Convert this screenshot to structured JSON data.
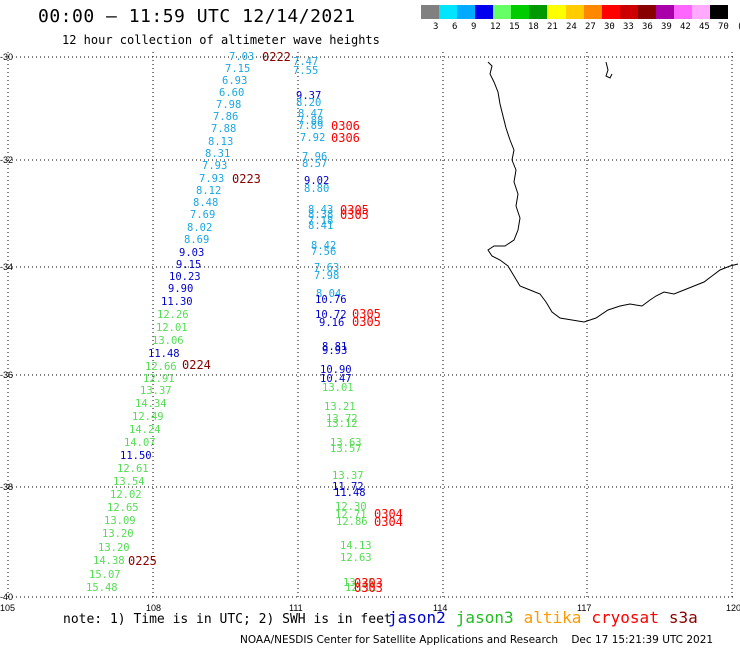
{
  "header": {
    "title": "00:00 – 11:59 UTC 12/14/2021",
    "subtitle": "12 hour collection of altimeter wave heights"
  },
  "colorbar": {
    "colors": [
      "#808080",
      "#00e5ff",
      "#00aaff",
      "#0000ee",
      "#66ff66",
      "#00cc00",
      "#009900",
      "#ffff00",
      "#ffcc00",
      "#ff8800",
      "#ff0000",
      "#cc0000",
      "#880000",
      "#aa00aa",
      "#ff66ff",
      "#ffaaff",
      "#000000"
    ],
    "labels": [
      "3",
      "6",
      "9",
      "12",
      "15",
      "18",
      "21",
      "24",
      "27",
      "30",
      "33",
      "36",
      "39",
      "42",
      "45",
      "70",
      "(ft)"
    ]
  },
  "axes": {
    "lat_labels": [
      "-30",
      "-32",
      "-34",
      "-36",
      "-38",
      "-40"
    ],
    "lon_labels": [
      "105",
      "108",
      "111",
      "114",
      "117",
      "120"
    ]
  },
  "tracks": [
    {
      "sat": "cryosat",
      "color": "#1aa7e0",
      "points": [
        [
          "7.03",
          118,
          0
        ],
        [
          "7.15",
          122,
          1
        ],
        [
          "6.93",
          120,
          2
        ],
        [
          "6.60",
          119,
          3
        ],
        [
          "7.98",
          118,
          4
        ],
        [
          "7.86",
          116,
          5
        ],
        [
          "7.88",
          115,
          6
        ],
        [
          "8.13",
          113,
          7
        ],
        [
          "8.31",
          111,
          8
        ],
        [
          "7.93",
          109,
          9
        ],
        [
          "7.93",
          107,
          10
        ],
        [
          "8.12",
          105,
          11
        ],
        [
          "8.48",
          103,
          12
        ],
        [
          "7.69",
          102,
          13
        ],
        [
          "8.02",
          100,
          14
        ],
        [
          "8.69",
          98,
          15
        ]
      ]
    },
    {
      "sat": "jason2",
      "color": "#0000cc",
      "points": [
        [
          "9.03",
          96,
          16
        ],
        [
          "9.15",
          95,
          17
        ],
        [
          "10.23",
          92,
          18
        ],
        [
          "9.90",
          91,
          19
        ],
        [
          "11.30",
          89,
          20
        ]
      ]
    },
    {
      "sat": "jason3",
      "color": "#55dd55",
      "points": [
        [
          "12.26",
          87,
          21
        ],
        [
          "12.01",
          85,
          22
        ],
        [
          "13.06",
          83,
          23
        ]
      ]
    }
  ],
  "labels_left": [
    {
      "t": "7.03",
      "c": "#1aa7e0"
    },
    {
      "t": "7.15",
      "c": "#1aa7e0"
    },
    {
      "t": "6.93",
      "c": "#1aa7e0"
    },
    {
      "t": "6.60",
      "c": "#1aa7e0"
    },
    {
      "t": "7.98",
      "c": "#1aa7e0"
    },
    {
      "t": "7.86",
      "c": "#1aa7e0"
    },
    {
      "t": "7.88",
      "c": "#1aa7e0"
    },
    {
      "t": "8.13",
      "c": "#1aa7e0"
    },
    {
      "t": "8.31",
      "c": "#1aa7e0"
    },
    {
      "t": "7.93",
      "c": "#1aa7e0"
    },
    {
      "t": "7.93",
      "c": "#1aa7e0"
    },
    {
      "t": "8.12",
      "c": "#1aa7e0"
    },
    {
      "t": "8.48",
      "c": "#1aa7e0"
    },
    {
      "t": "7.69",
      "c": "#1aa7e0"
    },
    {
      "t": "8.02",
      "c": "#1aa7e0"
    },
    {
      "t": "8.69",
      "c": "#1aa7e0"
    },
    {
      "t": "9.03",
      "c": "#0000cc"
    },
    {
      "t": "9.15",
      "c": "#0000cc"
    },
    {
      "t": "10.23",
      "c": "#0000cc"
    },
    {
      "t": "9.90",
      "c": "#0000cc"
    },
    {
      "t": "11.30",
      "c": "#0000cc"
    },
    {
      "t": "12.26",
      "c": "#55dd55"
    },
    {
      "t": "12.01",
      "c": "#55dd55"
    },
    {
      "t": "13.06",
      "c": "#55dd55"
    },
    {
      "t": "11.48",
      "c": "#0000cc"
    },
    {
      "t": "12.66",
      "c": "#55dd55"
    },
    {
      "t": "12.91",
      "c": "#55dd55"
    },
    {
      "t": "13.37",
      "c": "#55dd55"
    },
    {
      "t": "14.34",
      "c": "#55dd55"
    },
    {
      "t": "12.49",
      "c": "#55dd55"
    },
    {
      "t": "14.24",
      "c": "#55dd55"
    },
    {
      "t": "14.07",
      "c": "#55dd55"
    },
    {
      "t": "11.50",
      "c": "#0000cc"
    },
    {
      "t": "12.61",
      "c": "#55dd55"
    },
    {
      "t": "13.54",
      "c": "#55dd55"
    },
    {
      "t": "12.02",
      "c": "#55dd55"
    },
    {
      "t": "12.65",
      "c": "#55dd55"
    },
    {
      "t": "13.09",
      "c": "#55dd55"
    },
    {
      "t": "13.20",
      "c": "#55dd55"
    },
    {
      "t": "13.20",
      "c": "#55dd55"
    },
    {
      "t": "14.38",
      "c": "#55dd55"
    },
    {
      "t": "15.07",
      "c": "#55dd55"
    },
    {
      "t": "15.48",
      "c": "#55dd55"
    }
  ],
  "labels_right": [
    {
      "t": "7.47",
      "c": "#1aa7e0"
    },
    {
      "t": "7.55",
      "c": "#1aa7e0"
    },
    {
      "t": "9.37",
      "c": "#0000cc"
    },
    {
      "t": "8.20",
      "c": "#1aa7e0"
    },
    {
      "t": "8.47",
      "c": "#1aa7e0"
    },
    {
      "t": "7.88",
      "c": "#1aa7e0"
    },
    {
      "t": "7.89",
      "c": "#1aa7e0"
    },
    {
      "t": "7.92",
      "c": "#1aa7e0"
    },
    {
      "t": "7.96",
      "c": "#1aa7e0"
    },
    {
      "t": "8.57",
      "c": "#1aa7e0"
    },
    {
      "t": "9.02",
      "c": "#0000cc"
    },
    {
      "t": "8.80",
      "c": "#1aa7e0"
    },
    {
      "t": "8.43",
      "c": "#1aa7e0"
    },
    {
      "t": "8.38",
      "c": "#1aa7e0"
    },
    {
      "t": "7.18",
      "c": "#1aa7e0"
    },
    {
      "t": "8.41",
      "c": "#1aa7e0"
    },
    {
      "t": "8.42",
      "c": "#1aa7e0"
    },
    {
      "t": "7.56",
      "c": "#1aa7e0"
    },
    {
      "t": "7.63",
      "c": "#1aa7e0"
    },
    {
      "t": "7.98",
      "c": "#1aa7e0"
    },
    {
      "t": "8.04",
      "c": "#1aa7e0"
    },
    {
      "t": "10.76",
      "c": "#0000cc"
    },
    {
      "t": "10.72",
      "c": "#0000cc"
    },
    {
      "t": "9.16",
      "c": "#0000cc"
    },
    {
      "t": "8.81",
      "c": "#0000cc"
    },
    {
      "t": "9.93",
      "c": "#0000cc"
    },
    {
      "t": "10.90",
      "c": "#0000cc"
    },
    {
      "t": "10.47",
      "c": "#0000cc"
    },
    {
      "t": "13.01",
      "c": "#55dd55"
    },
    {
      "t": "13.21",
      "c": "#55dd55"
    },
    {
      "t": "13.72",
      "c": "#55dd55"
    },
    {
      "t": "13.12",
      "c": "#55dd55"
    },
    {
      "t": "13.63",
      "c": "#55dd55"
    },
    {
      "t": "13.57",
      "c": "#55dd55"
    },
    {
      "t": "13.37",
      "c": "#55dd55"
    },
    {
      "t": "11.72",
      "c": "#0000cc"
    },
    {
      "t": "11.48",
      "c": "#0000cc"
    },
    {
      "t": "12.30",
      "c": "#55dd55"
    },
    {
      "t": "12.71",
      "c": "#55dd55"
    },
    {
      "t": "12.86",
      "c": "#55dd55"
    },
    {
      "t": "14.13",
      "c": "#55dd55"
    },
    {
      "t": "12.63",
      "c": "#55dd55"
    },
    {
      "t": "13.25",
      "c": "#55dd55"
    },
    {
      "t": "12.11",
      "c": "#55dd55"
    }
  ],
  "times": [
    {
      "t": "0222",
      "c": "#880000"
    },
    {
      "t": "0223",
      "c": "#880000"
    },
    {
      "t": "0224",
      "c": "#880000"
    },
    {
      "t": "0225",
      "c": "#880000"
    },
    {
      "t": "0306",
      "c": "#ff0000"
    },
    {
      "t": "0306",
      "c": "#ff0000"
    },
    {
      "t": "0305",
      "c": "#ff0000"
    },
    {
      "t": "0305",
      "c": "#ff0000"
    },
    {
      "t": "0305",
      "c": "#ff0000"
    },
    {
      "t": "0305",
      "c": "#ff0000"
    },
    {
      "t": "0304",
      "c": "#ff0000"
    },
    {
      "t": "0304",
      "c": "#ff0000"
    },
    {
      "t": "0303",
      "c": "#ff0000"
    },
    {
      "t": "0303",
      "c": "#ff0000"
    }
  ],
  "footer": {
    "note": "note: 1) Time is in UTC; 2) SWH is in feet",
    "satellites": [
      {
        "name": "jason2",
        "color": "#0000cc"
      },
      {
        "name": "jason3",
        "color": "#22bb22"
      },
      {
        "name": "altika",
        "color": "#ff9900"
      },
      {
        "name": "cryosat",
        "color": "#ff0000"
      },
      {
        "name": "s3a",
        "color": "#880000"
      }
    ],
    "credit": "NOAA/NESDIS Center for Satellite Applications and Research    Dec 17 15:21:39 UTC 2021"
  }
}
